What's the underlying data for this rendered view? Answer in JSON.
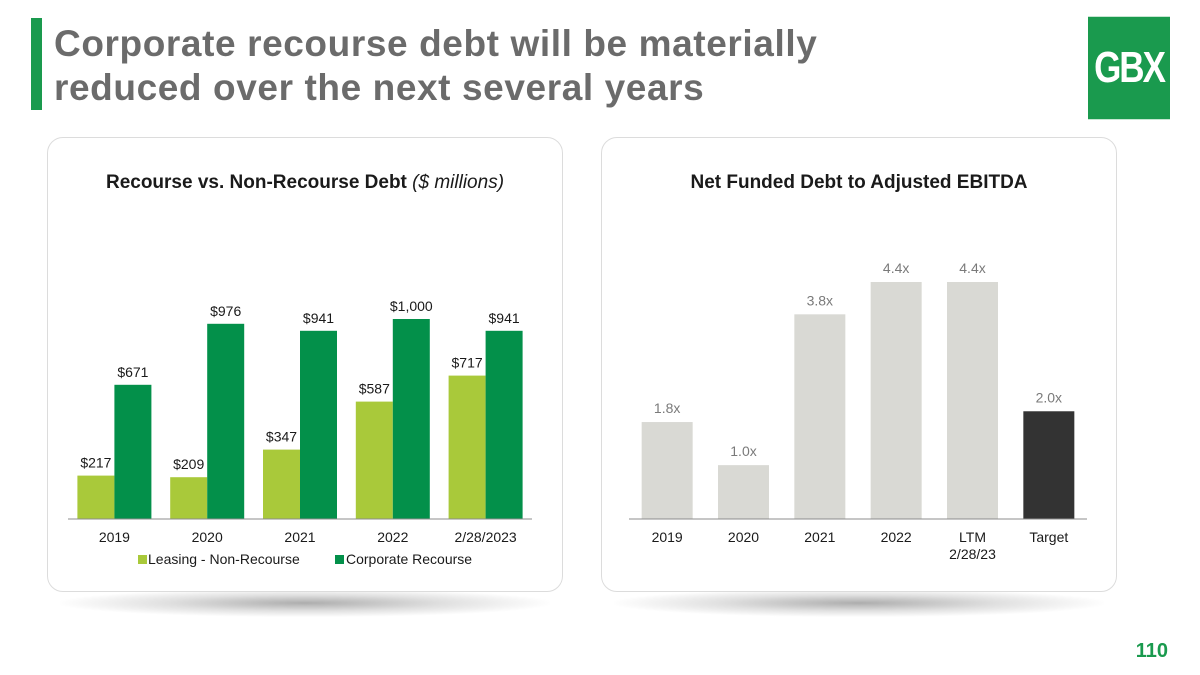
{
  "header": {
    "title_line1": "Corporate recourse debt will be materially",
    "title_line2": "reduced over the next several years",
    "logo_text": "GBX"
  },
  "page_number": "110",
  "colors": {
    "brand_green": "#1a9a4e",
    "non_recourse": "#a9c93a",
    "corporate_recourse": "#03904a",
    "ratio_bar": "#d9d9d4",
    "target_bar": "#333333"
  },
  "chart_data": [
    {
      "type": "bar",
      "title": "Recourse vs. Non-Recourse Debt",
      "title_suffix": "($ millions)",
      "categories": [
        "2019",
        "2020",
        "2021",
        "2022",
        "2/28/2023"
      ],
      "series": [
        {
          "name": "Leasing - Non-Recourse",
          "values": [
            217,
            209,
            347,
            587,
            717
          ],
          "labels": [
            "$217",
            "$209",
            "$347",
            "$587",
            "$717"
          ]
        },
        {
          "name": "Corporate Recourse",
          "values": [
            671,
            976,
            941,
            1000,
            941
          ],
          "labels": [
            "$671",
            "$976",
            "$941",
            "$1,000",
            "$941"
          ]
        }
      ],
      "ylim": [
        0,
        1000
      ],
      "legend": "bottom"
    },
    {
      "type": "bar",
      "title": "Net Funded Debt to Adjusted EBITDA",
      "categories": [
        "2019",
        "2020",
        "2021",
        "2022",
        "LTM 2/28/23",
        "Target"
      ],
      "category_lines": [
        [
          "2019"
        ],
        [
          "2020"
        ],
        [
          "2021"
        ],
        [
          "2022"
        ],
        [
          "LTM",
          "2/28/23"
        ],
        [
          "Target"
        ]
      ],
      "values": [
        1.8,
        1.0,
        3.8,
        4.4,
        4.4,
        2.0
      ],
      "labels": [
        "1.8x",
        "1.0x",
        "3.8x",
        "4.4x",
        "4.4x",
        "2.0x"
      ],
      "highlight": "Target",
      "ylim": [
        0,
        4.4
      ]
    }
  ]
}
